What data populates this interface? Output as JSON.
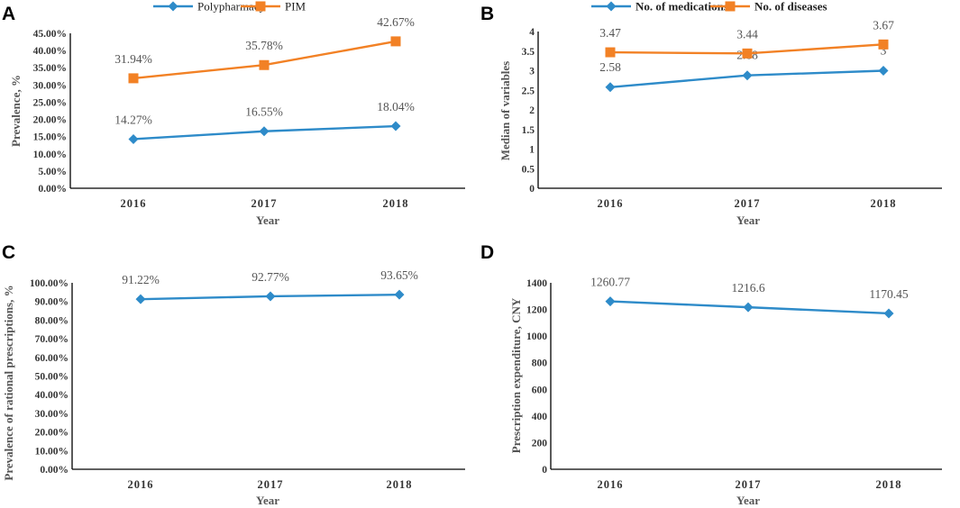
{
  "chart_data": [
    {
      "panel": "A",
      "type": "line",
      "categories": [
        "2016",
        "2017",
        "2018"
      ],
      "series": [
        {
          "name": "Polypharmacy",
          "values": [
            14.27,
            16.55,
            18.04
          ],
          "labels": [
            "14.27%",
            "16.55%",
            "18.04%"
          ],
          "color": "#2E8BC9",
          "marker": "diamond"
        },
        {
          "name": "PIM",
          "values": [
            31.94,
            35.78,
            42.67
          ],
          "labels": [
            "31.94%",
            "35.78%",
            "42.67%"
          ],
          "color": "#F28125",
          "marker": "square"
        }
      ],
      "xlabel": "Year",
      "ylabel": "Prevalence, %",
      "ylim": [
        0,
        45
      ],
      "yticks": [
        "0.00%",
        "5.00%",
        "10.00%",
        "15.00%",
        "20.00%",
        "25.00%",
        "30.00%",
        "35.00%",
        "40.00%",
        "45.00%"
      ],
      "legend_bold": false
    },
    {
      "panel": "B",
      "type": "line",
      "categories": [
        "2016",
        "2017",
        "2018"
      ],
      "series": [
        {
          "name": "No. of medications",
          "values": [
            2.58,
            2.88,
            3
          ],
          "labels": [
            "2.58",
            "2.88",
            "3"
          ],
          "color": "#2E8BC9",
          "marker": "diamond"
        },
        {
          "name": "No. of diseases",
          "values": [
            3.47,
            3.44,
            3.67
          ],
          "labels": [
            "3.47",
            "3.44",
            "3.67"
          ],
          "color": "#F28125",
          "marker": "square"
        }
      ],
      "xlabel": "Year",
      "ylabel": "Median of variables",
      "ylim": [
        0,
        4
      ],
      "yticks": [
        "0",
        "0.5",
        "1",
        "1.5",
        "2",
        "2.5",
        "3",
        "3.5",
        "4"
      ],
      "legend_bold": true
    },
    {
      "panel": "C",
      "type": "line",
      "categories": [
        "2016",
        "2017",
        "2018"
      ],
      "series": [
        {
          "name": "Rational prescriptions",
          "values": [
            91.22,
            92.77,
            93.65
          ],
          "labels": [
            "91.22%",
            "92.77%",
            "93.65%"
          ],
          "color": "#2E8BC9",
          "marker": "diamond"
        }
      ],
      "xlabel": "Year",
      "ylabel": "Prevalence of rational prescriptions, %",
      "ylim": [
        0,
        100
      ],
      "yticks": [
        "0.00%",
        "10.00%",
        "20.00%",
        "30.00%",
        "40.00%",
        "50.00%",
        "60.00%",
        "70.00%",
        "80.00%",
        "90.00%",
        "100.00%"
      ]
    },
    {
      "panel": "D",
      "type": "line",
      "categories": [
        "2016",
        "2017",
        "2018"
      ],
      "series": [
        {
          "name": "Prescription expenditure",
          "values": [
            1260.77,
            1216.6,
            1170.45
          ],
          "labels": [
            "1260.77",
            "1216.6",
            "1170.45"
          ],
          "color": "#2E8BC9",
          "marker": "diamond"
        }
      ],
      "xlabel": "Year",
      "ylabel": "Prescription expenditure, CNY",
      "ylim": [
        0,
        1400
      ],
      "yticks": [
        "0",
        "200",
        "400",
        "600",
        "800",
        "1000",
        "1200",
        "1400"
      ]
    }
  ]
}
